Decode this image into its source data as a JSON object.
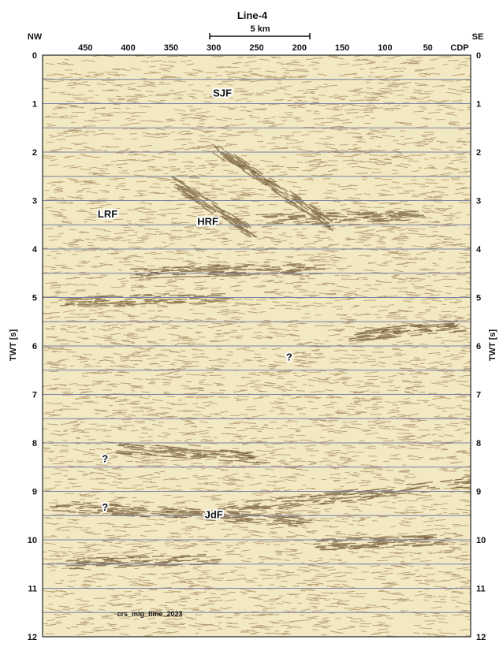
{
  "chart_data": {
    "type": "seismic_section",
    "title": "Line-4",
    "scale_bar_label": "5 km",
    "direction_left": "NW",
    "direction_right": "SE",
    "x_axis_label": "CDP",
    "x_ticks": [
      450,
      400,
      350,
      300,
      250,
      200,
      150,
      100,
      50
    ],
    "xlim": [
      500,
      0
    ],
    "y_axis_label": "TWT [s]",
    "y_ticks": [
      0,
      1,
      2,
      3,
      4,
      5,
      6,
      7,
      8,
      9,
      10,
      11,
      12
    ],
    "ylim": [
      0,
      12
    ],
    "gridlines_y": [
      0.5,
      1,
      1.5,
      2,
      2.5,
      3,
      3.5,
      4,
      4.5,
      5,
      5.5,
      6,
      6.5,
      7,
      7.5,
      8,
      8.5,
      9,
      9.5,
      10,
      10.5,
      11,
      11.5
    ],
    "annotations": [
      {
        "text": "SJF",
        "cdp": 290,
        "twt": 0.85
      },
      {
        "text": "LRF",
        "cdp": 424,
        "twt": 3.35
      },
      {
        "text": "HRF",
        "cdp": 307,
        "twt": 3.5
      },
      {
        "text": "?",
        "cdp": 212,
        "twt": 6.3
      },
      {
        "text": "?",
        "cdp": 427,
        "twt": 8.4
      },
      {
        "text": "?",
        "cdp": 427,
        "twt": 9.4
      },
      {
        "text": "JdF",
        "cdp": 300,
        "twt": 9.55
      }
    ],
    "footer_label": "crs_mig_time_2023",
    "colors": {
      "background": "#f2e8c2",
      "reflector": "#6e4a1c",
      "gridline": "#7a82a6",
      "frame": "#222222"
    }
  }
}
